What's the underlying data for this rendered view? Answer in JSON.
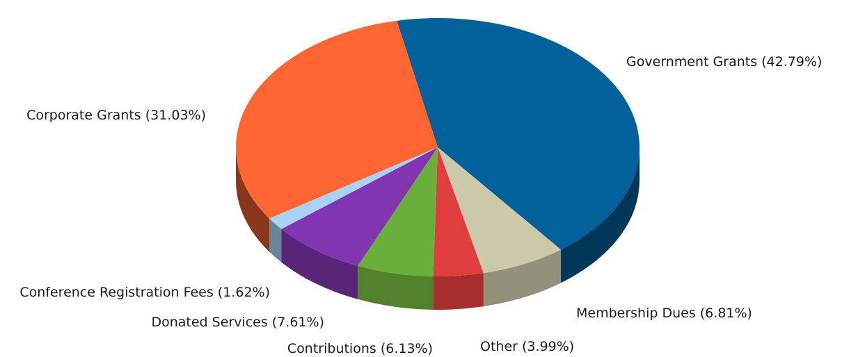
{
  "chart_data": {
    "type": "pie",
    "style": "3d",
    "title": "",
    "start_angle_deg": -101.7,
    "slices": [
      {
        "label": "Government Grants (42.79%)",
        "value": 42.79,
        "color": "#02609a"
      },
      {
        "label": "Membership Dues (6.81%)",
        "value": 6.81,
        "color": "#ccc9ab"
      },
      {
        "label": "Other (3.99%)",
        "value": 3.99,
        "color": "#e03e3e"
      },
      {
        "label": "Contributions (6.13%)",
        "value": 6.13,
        "color": "#6aaf3a"
      },
      {
        "label": "Donated Services (7.61%)",
        "value": 7.61,
        "color": "#8135b0"
      },
      {
        "label": "Conference Registration Fees (1.62%)",
        "value": 1.62,
        "color": "#a9d3f5"
      },
      {
        "label": "Corporate Grants (31.03%)",
        "value": 31.03,
        "color": "#ff6633"
      }
    ]
  }
}
